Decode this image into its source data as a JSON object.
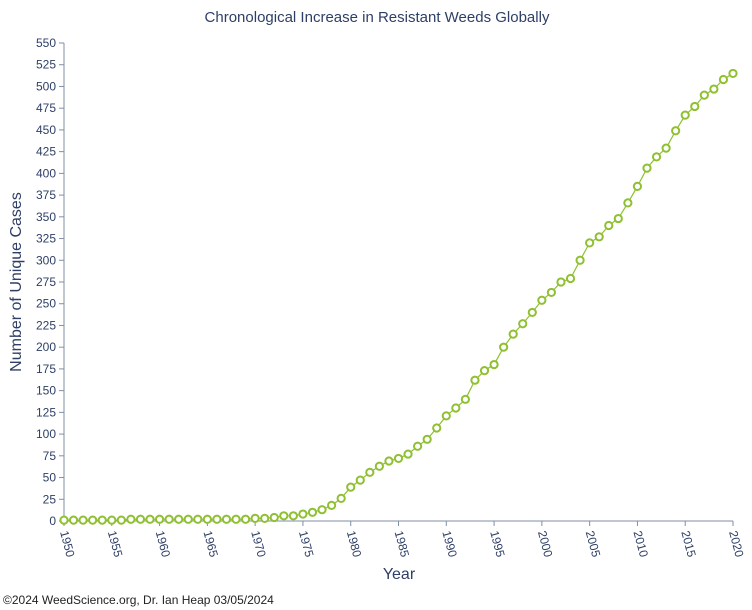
{
  "chart_data": {
    "type": "line",
    "title": "Chronological Increase in Resistant Weeds Globally",
    "xlabel": "Year",
    "ylabel": "Number of Unique Cases",
    "xlim": [
      1950,
      2020
    ],
    "ylim": [
      0,
      550
    ],
    "x_ticks": [
      1950,
      1955,
      1960,
      1965,
      1970,
      1975,
      1980,
      1985,
      1990,
      1995,
      2000,
      2005,
      2010,
      2015,
      2020
    ],
    "y_ticks": [
      0,
      25,
      50,
      75,
      100,
      125,
      150,
      175,
      200,
      225,
      250,
      275,
      300,
      325,
      350,
      375,
      400,
      425,
      450,
      475,
      500,
      525,
      550
    ],
    "grid": false,
    "colors": {
      "series": "#8fc031",
      "axis": "#7f8fa6",
      "text": "#2e3f66"
    },
    "series": [
      {
        "marker": "open-circle",
        "x": [
          1950,
          1951,
          1952,
          1953,
          1954,
          1955,
          1956,
          1957,
          1958,
          1959,
          1960,
          1961,
          1962,
          1963,
          1964,
          1965,
          1966,
          1967,
          1968,
          1969,
          1970,
          1971,
          1972,
          1973,
          1974,
          1975,
          1976,
          1977,
          1978,
          1979,
          1980,
          1981,
          1982,
          1983,
          1984,
          1985,
          1986,
          1987,
          1988,
          1989,
          1990,
          1991,
          1992,
          1993,
          1994,
          1995,
          1996,
          1997,
          1998,
          1999,
          2000,
          2001,
          2002,
          2003,
          2004,
          2005,
          2006,
          2007,
          2008,
          2009,
          2010,
          2011,
          2012,
          2013,
          2014,
          2015,
          2016,
          2017,
          2018,
          2019,
          2020
        ],
        "values": [
          1,
          1,
          1,
          1,
          1,
          1,
          1,
          2,
          2,
          2,
          2,
          2,
          2,
          2,
          2,
          2,
          2,
          2,
          2,
          2,
          3,
          3,
          4,
          6,
          6,
          8,
          10,
          13,
          18,
          26,
          39,
          47,
          56,
          63,
          69,
          72,
          77,
          86,
          94,
          107,
          121,
          130,
          140,
          162,
          173,
          180,
          200,
          215,
          227,
          240,
          254,
          263,
          275,
          279,
          300,
          320,
          327,
          340,
          348,
          366,
          385,
          406,
          419,
          429,
          449,
          467,
          477,
          490,
          497,
          508,
          515
        ]
      }
    ]
  },
  "footer": {
    "credit": "©2024 WeedScience.org, Dr. Ian Heap 03/05/2024"
  }
}
